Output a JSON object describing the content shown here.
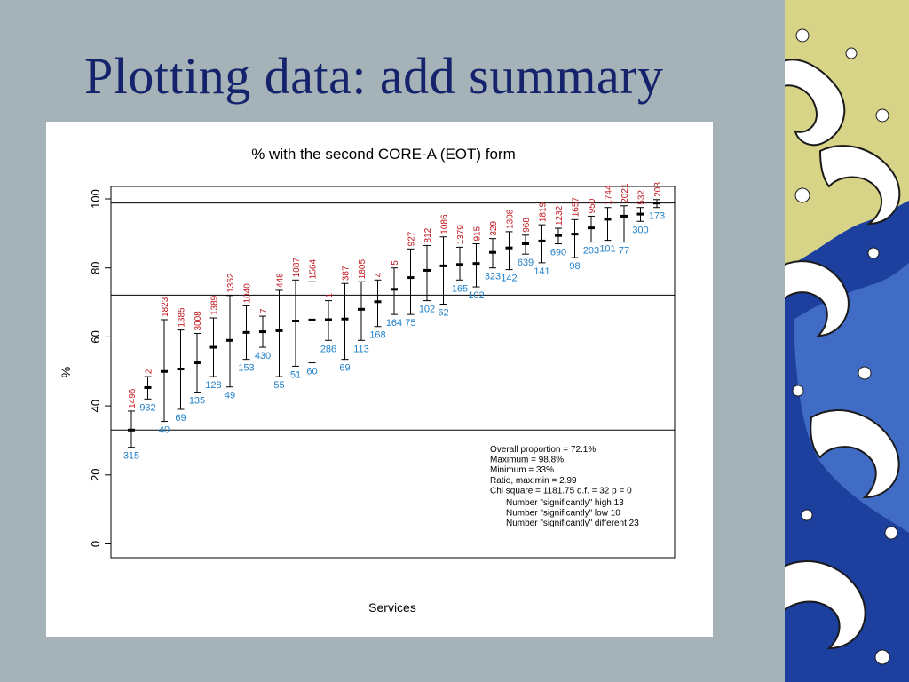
{
  "slide": {
    "title": "Plotting data: add summary"
  },
  "decoration": {
    "name": "wave-illustration",
    "colors": {
      "sky": "#d7d487",
      "sea_dark": "#1d3f9e",
      "sea_light": "#4a78d0",
      "foam": "#ffffff",
      "ink": "#1a1a1a"
    }
  },
  "chart_data": {
    "type": "scatter",
    "subtype": "error-bar-plot",
    "title": "% with the second CORE-A (EOT) form",
    "xlabel": "Services",
    "ylabel": "%",
    "ylim": [
      0,
      100
    ],
    "yticks": [
      "0",
      "20",
      "40",
      "60",
      "80",
      "100"
    ],
    "reference_lines": {
      "overall": 72.1,
      "maximum": 98.8,
      "minimum": 33
    },
    "colors": {
      "mark": "#000000",
      "top_label": "#c0141c",
      "bottom_label": "#1e7fc8"
    },
    "points": [
      {
        "value": 33,
        "lower": 28,
        "upper": 38.5,
        "top_label": "1496",
        "bottom_label": "315"
      },
      {
        "value": 45.3,
        "lower": 42,
        "upper": 48.5,
        "top_label": "2",
        "bottom_label": "932"
      },
      {
        "value": 50,
        "lower": 35.5,
        "upper": 65,
        "top_label": "1823",
        "bottom_label": "40"
      },
      {
        "value": 50.7,
        "lower": 39,
        "upper": 62,
        "top_label": "1385",
        "bottom_label": "69"
      },
      {
        "value": 52.5,
        "lower": 44,
        "upper": 61,
        "top_label": "3008",
        "bottom_label": "135"
      },
      {
        "value": 57,
        "lower": 48.5,
        "upper": 65.5,
        "top_label": "1389",
        "bottom_label": "128"
      },
      {
        "value": 59,
        "lower": 45.5,
        "upper": 72,
        "top_label": "1362",
        "bottom_label": "49"
      },
      {
        "value": 61.3,
        "lower": 53.5,
        "upper": 69,
        "top_label": "1040",
        "bottom_label": "153"
      },
      {
        "value": 61.5,
        "lower": 57,
        "upper": 66,
        "top_label": "7",
        "bottom_label": "430"
      },
      {
        "value": 61.8,
        "lower": 48.5,
        "upper": 73.5,
        "top_label": "448",
        "bottom_label": "55"
      },
      {
        "value": 64.6,
        "lower": 51.5,
        "upper": 76.5,
        "top_label": "1087",
        "bottom_label": "51"
      },
      {
        "value": 64.9,
        "lower": 52.5,
        "upper": 76,
        "top_label": "1564",
        "bottom_label": "60"
      },
      {
        "value": 65,
        "lower": 59,
        "upper": 70.5,
        "top_label": "1",
        "bottom_label": "286"
      },
      {
        "value": 65.2,
        "lower": 53.5,
        "upper": 75.5,
        "top_label": "387",
        "bottom_label": "69"
      },
      {
        "value": 68,
        "lower": 59,
        "upper": 76,
        "top_label": "1805",
        "bottom_label": "113"
      },
      {
        "value": 70.2,
        "lower": 63,
        "upper": 76.5,
        "top_label": "4",
        "bottom_label": "168"
      },
      {
        "value": 73.8,
        "lower": 66.5,
        "upper": 80,
        "top_label": "5",
        "bottom_label": "164"
      },
      {
        "value": 77.2,
        "lower": 66.5,
        "upper": 85.5,
        "top_label": "927",
        "bottom_label": "75"
      },
      {
        "value": 79.3,
        "lower": 70.5,
        "upper": 86.5,
        "top_label": "812",
        "bottom_label": "102"
      },
      {
        "value": 80.6,
        "lower": 69.5,
        "upper": 89,
        "top_label": "1086",
        "bottom_label": "62"
      },
      {
        "value": 81,
        "lower": 76.5,
        "upper": 86,
        "top_label": "1379",
        "bottom_label": "165"
      },
      {
        "value": 81.3,
        "lower": 74.5,
        "upper": 87,
        "top_label": "915",
        "bottom_label": "102"
      },
      {
        "value": 84.5,
        "lower": 80,
        "upper": 88.5,
        "top_label": "329",
        "bottom_label": "323"
      },
      {
        "value": 85.8,
        "lower": 79.5,
        "upper": 90.5,
        "top_label": "1308",
        "bottom_label": "142"
      },
      {
        "value": 87,
        "lower": 84,
        "upper": 89.5,
        "top_label": "968",
        "bottom_label": "639"
      },
      {
        "value": 87.8,
        "lower": 81.5,
        "upper": 92.5,
        "top_label": "1819",
        "bottom_label": "141"
      },
      {
        "value": 89.4,
        "lower": 87,
        "upper": 91.5,
        "top_label": "1232",
        "bottom_label": "690"
      },
      {
        "value": 89.8,
        "lower": 83,
        "upper": 94,
        "top_label": "1657",
        "bottom_label": "98"
      },
      {
        "value": 91.6,
        "lower": 87.5,
        "upper": 95,
        "top_label": "950",
        "bottom_label": "203"
      },
      {
        "value": 94.1,
        "lower": 88,
        "upper": 97.5,
        "top_label": "1744",
        "bottom_label": "101"
      },
      {
        "value": 95,
        "lower": 87.5,
        "upper": 98,
        "top_label": "2021",
        "bottom_label": "77"
      },
      {
        "value": 95.6,
        "lower": 93.5,
        "upper": 97.5,
        "top_label": "532",
        "bottom_label": "300"
      },
      {
        "value": 98.8,
        "lower": 97.5,
        "upper": 99.8,
        "top_label": "203",
        "bottom_label": "173"
      }
    ],
    "summary": [
      "Overall proportion = 72.1%",
      "Maximum = 98.8%",
      "Minimum = 33%",
      "Ratio, max:min = 2.99",
      "Chi square = 1181.75 d.f. = 32 p = 0",
      "Number \"significantly\" high 13",
      "Number \"significantly\" low 10",
      "Number \"significantly\" different 23"
    ]
  }
}
